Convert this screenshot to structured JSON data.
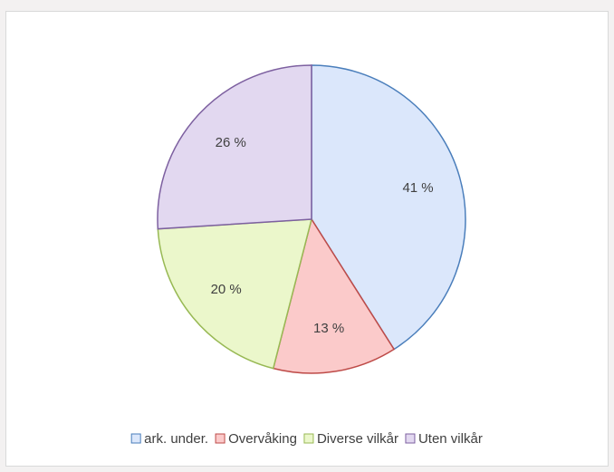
{
  "chart_data": {
    "type": "pie",
    "categories": [
      "ark. under.",
      "Overvåking",
      "Diverse vilkår",
      "Uten vilkår"
    ],
    "values": [
      41,
      13,
      20,
      26
    ],
    "value_labels": [
      "41 %",
      "13 %",
      "20 %",
      "26 %"
    ],
    "colors": [
      "#dbe7fb",
      "#fbcaca",
      "#ebf7cb",
      "#e2d8f0"
    ],
    "edge_colors": [
      "#4a7ebb",
      "#be4b48",
      "#98b954",
      "#7d60a0"
    ],
    "legend": "bottom"
  }
}
